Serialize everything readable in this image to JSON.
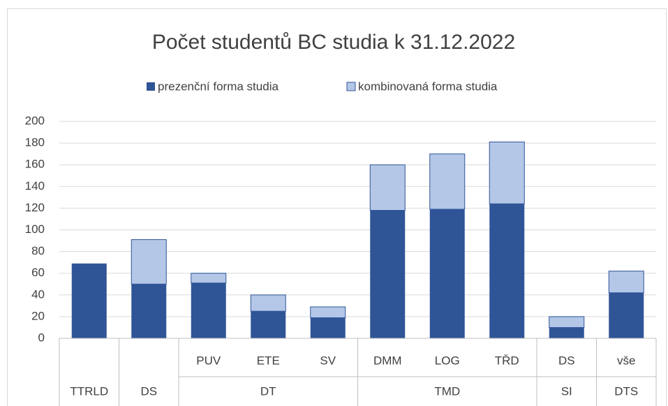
{
  "chart_data": {
    "type": "stacked_bar",
    "title": "Počet studentů BC studia k 31.12.2022",
    "categories": [
      null,
      null,
      "PUV",
      "ETE",
      "SV",
      "DMM",
      "LOG",
      "TŘD",
      "DS",
      "vše"
    ],
    "groups": [
      "TTRLD",
      "DS",
      "DT",
      "DT",
      "DT",
      "TMD",
      "TMD",
      "TMD",
      "SI",
      "DTS"
    ],
    "series": [
      {
        "name": "prezenční forma studia",
        "color": "#2f5597",
        "values": [
          69,
          50,
          51,
          25,
          19,
          118,
          119,
          124,
          10,
          42
        ]
      },
      {
        "name": "kombinovaná forma studia",
        "color": "#b4c7e7",
        "values": [
          0,
          41,
          9,
          15,
          10,
          42,
          51,
          57,
          10,
          20
        ]
      }
    ],
    "ylim": [
      0,
      200
    ],
    "yticks": [
      0,
      20,
      40,
      60,
      80,
      100,
      120,
      140,
      160,
      180,
      200
    ],
    "grid": true,
    "legend": "top"
  }
}
